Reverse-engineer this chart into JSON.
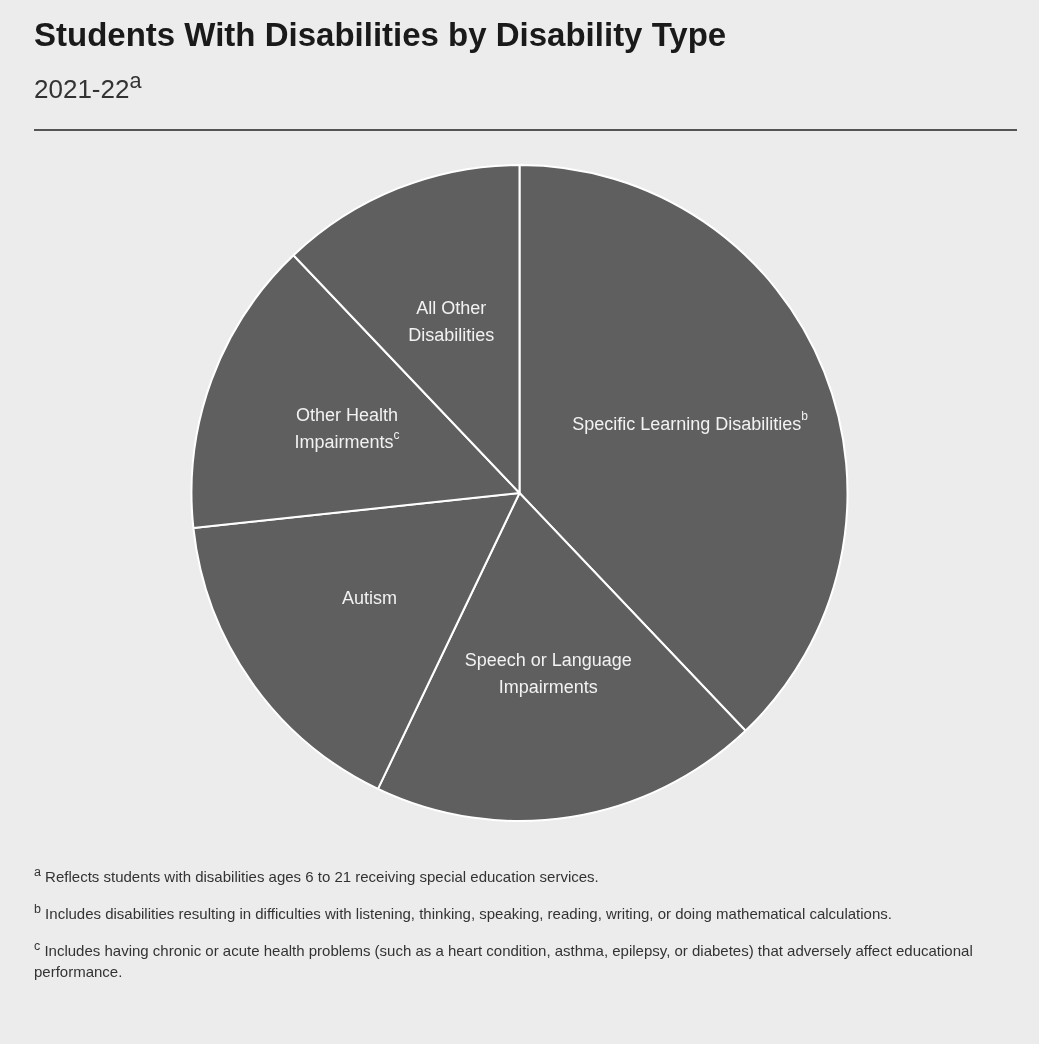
{
  "chart_data": {
    "type": "pie",
    "title": "Students With Disabilities by Disability Type",
    "subtitle": "2021-22$^{a}$",
    "categories": [
      "Specific Learning Disabilities$^{b}$",
      "Speech or Language Impairments",
      "Autism",
      "Other Health Impairments$^{c}$",
      "All Other Disabilities"
    ],
    "values": [
      37.9,
      19.2,
      16.2,
      14.6,
      12.1
    ],
    "colors": [
      "#5f5f5f",
      "#5f5f5f",
      "#5f5f5f",
      "#5f5f5f",
      "#5f5f5f"
    ],
    "legend": false,
    "annotations": [
      "$^{a}$ Reflects students with disabilities ages 6 to 21 receiving special education services.",
      "$^{b}$ Includes disabilities resulting in difficulties with listening, thinking, speaking, reading, writing, or doing mathematical calculations.",
      "$^{c}$ Includes having chronic or acute health problems (such as a heart condition, asthma, epilepsy, or diabetes) that adversely affect educational performance."
    ]
  }
}
